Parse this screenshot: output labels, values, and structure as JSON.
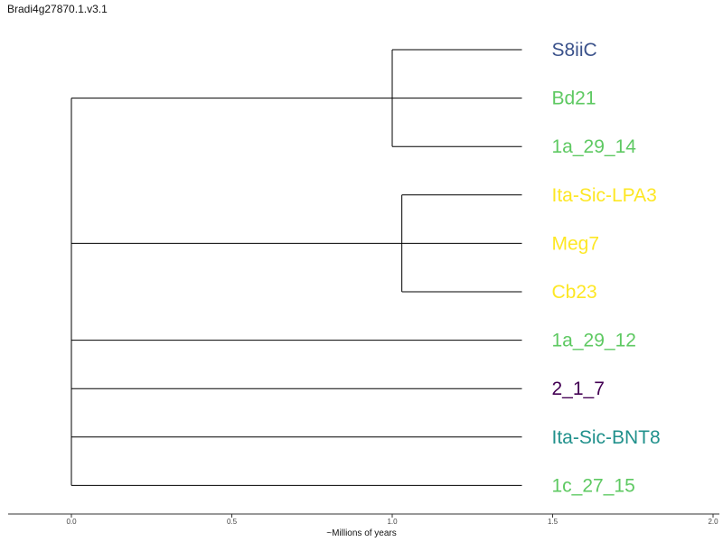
{
  "title": "Bradi4g27870.1.v3.1",
  "chart_data": {
    "type": "tree",
    "xlabel": "~Millions of years",
    "xlim": [
      0.0,
      2.0
    ],
    "ticks": [
      {
        "value": 0.0,
        "label": "0.0"
      },
      {
        "value": 0.5,
        "label": "0.5"
      },
      {
        "value": 1.0,
        "label": "1.0"
      },
      {
        "value": 1.5,
        "label": "1.5"
      },
      {
        "value": 2.0,
        "label": "2.0"
      }
    ],
    "tip_depth": 1.5,
    "leaves": [
      {
        "name": "S8iiC",
        "color": "#3b528b"
      },
      {
        "name": "Bd21",
        "color": "#5ec962"
      },
      {
        "name": "1a_29_14",
        "color": "#5ec962"
      },
      {
        "name": "Ita-Sic-LPA3",
        "color": "#fde725"
      },
      {
        "name": "Meg7",
        "color": "#fde725"
      },
      {
        "name": "Cb23",
        "color": "#fde725"
      },
      {
        "name": "1a_29_12",
        "color": "#5ec962"
      },
      {
        "name": "2_1_7",
        "color": "#440154"
      },
      {
        "name": "Ita-Sic-BNT8",
        "color": "#21918c"
      },
      {
        "name": "1c_27_15",
        "color": "#5ec962"
      }
    ],
    "clades": [
      {
        "node_depth": 1.0,
        "leaves": [
          0,
          1,
          2
        ]
      },
      {
        "node_depth": 1.03,
        "leaves": [
          3,
          4,
          5
        ]
      }
    ],
    "root": {
      "node_depth": 0.0,
      "children": [
        "clade-0",
        "clade-1",
        6,
        7,
        8,
        9
      ]
    }
  }
}
